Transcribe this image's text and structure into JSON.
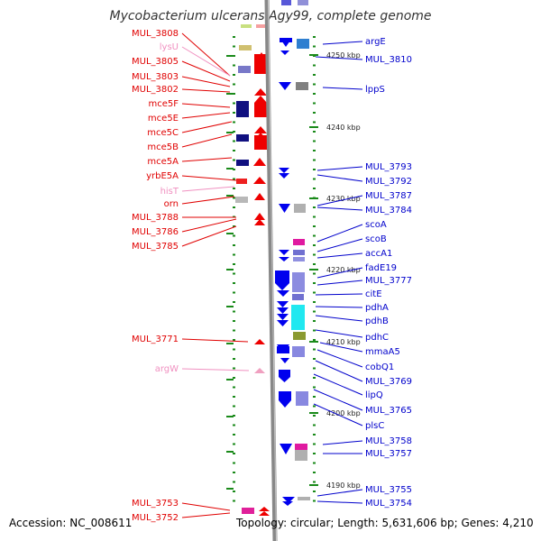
{
  "title": "Mycobacterium ulcerans Agy99, complete genome",
  "footer": {
    "accession": "Accession: NC_008611",
    "topology": "Topology: circular; Length: 5,631,606 bp; Genes: 4,210"
  },
  "colors": {
    "left_label": "#e00000",
    "left_label_pale": "#f090c0",
    "right_label": "#0000cc",
    "axis": "#888888",
    "tick": "#1a8a1a"
  },
  "kbp_ticks": [
    "4250 kbp",
    "4240 kbp",
    "4230 kbp",
    "4220 kbp",
    "4210 kbp",
    "4200 kbp",
    "4190 kbp"
  ],
  "left_genes": [
    {
      "label": "MUL_3808",
      "pale": false
    },
    {
      "label": "lysU",
      "pale": true
    },
    {
      "label": "MUL_3805",
      "pale": false
    },
    {
      "label": "MUL_3803",
      "pale": false
    },
    {
      "label": "MUL_3802",
      "pale": false
    },
    {
      "label": "mce5F",
      "pale": false
    },
    {
      "label": "mce5E",
      "pale": false
    },
    {
      "label": "mce5C",
      "pale": false
    },
    {
      "label": "mce5B",
      "pale": false
    },
    {
      "label": "mce5A",
      "pale": false
    },
    {
      "label": "yrbE5A",
      "pale": false
    },
    {
      "label": "hisT",
      "pale": true
    },
    {
      "label": "orn",
      "pale": false
    },
    {
      "label": "MUL_3788",
      "pale": false
    },
    {
      "label": "MUL_3786",
      "pale": false
    },
    {
      "label": "MUL_3785",
      "pale": false
    },
    {
      "label": "MUL_3771",
      "pale": false
    },
    {
      "label": "argW",
      "pale": true
    },
    {
      "label": "MUL_3753",
      "pale": false
    },
    {
      "label": "MUL_3752",
      "pale": false
    }
  ],
  "right_genes": [
    "argE",
    "MUL_3810",
    "lppS",
    "MUL_3793",
    "MUL_3792",
    "MUL_3787",
    "MUL_3784",
    "scoA",
    "scoB",
    "accA1",
    "fadE19",
    "MUL_3777",
    "citE",
    "pdhA",
    "pdhB",
    "pdhC",
    "mmaA5",
    "cobQ1",
    "MUL_3769",
    "lipQ",
    "MUL_3765",
    "plsC",
    "MUL_3758",
    "MUL_3757",
    "MUL_3755",
    "MUL_3754"
  ]
}
